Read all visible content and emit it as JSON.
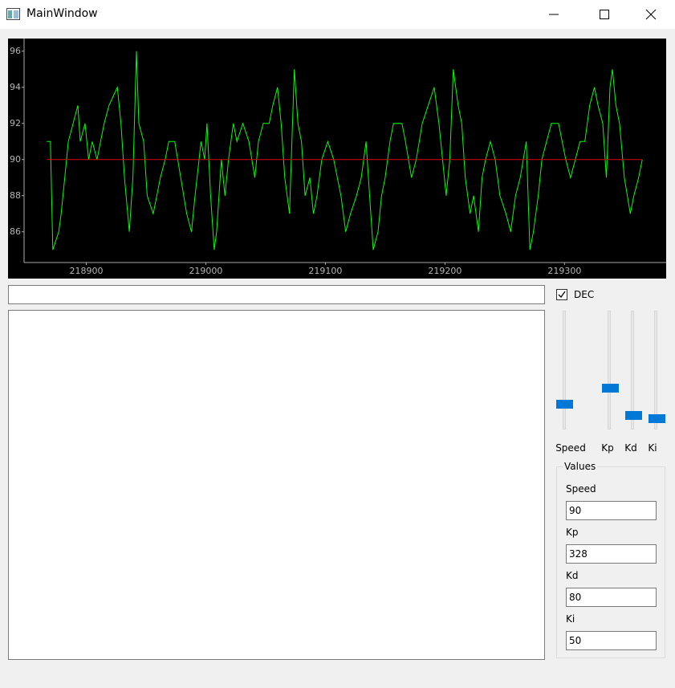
{
  "window": {
    "title": "MainWindow"
  },
  "chart_data": {
    "type": "line",
    "background": "#000000",
    "grid": false,
    "x": [
      218867,
      218870,
      218872,
      218877,
      218879,
      218882,
      218885,
      218889,
      218893,
      218895,
      218899,
      218902,
      218905,
      218909,
      218912,
      218915,
      218919,
      218926,
      218929,
      218932,
      218936,
      218939,
      218942,
      218944,
      218948,
      218951,
      218956,
      218959,
      218962,
      218966,
      218969,
      218974,
      218979,
      218984,
      218988,
      218991,
      218996,
      218999,
      219001,
      219004,
      219007,
      219009,
      219013,
      219016,
      219019,
      219023,
      219026,
      219031,
      219036,
      219041,
      219044,
      219048,
      219053,
      219056,
      219060,
      219063,
      219066,
      219070,
      219074,
      219077,
      219080,
      219083,
      219087,
      219090,
      219093,
      219097,
      219102,
      219107,
      219110,
      219113,
      219117,
      219121,
      219126,
      219130,
      219134,
      219137,
      219140,
      219144,
      219147,
      219150,
      219154,
      219157,
      219164,
      219167,
      219172,
      219176,
      219181,
      219186,
      219191,
      219195,
      219201,
      219204,
      219207,
      219211,
      219214,
      219217,
      219221,
      219224,
      219228,
      219231,
      219234,
      219238,
      219242,
      219246,
      219251,
      219255,
      219259,
      219263,
      219268,
      219271,
      219274,
      219278,
      219281,
      219285,
      219289,
      219295,
      219298,
      219301,
      219305,
      219309,
      219313,
      219317,
      219321,
      219325,
      219328,
      219332,
      219335,
      219338,
      219340,
      219343,
      219346,
      219350,
      219355,
      219358,
      219362,
      219365
    ],
    "series": [
      {
        "color": "#00ff00",
        "values": [
          91,
          91,
          85,
          86,
          87,
          89,
          91,
          92,
          93,
          91,
          92,
          90,
          91,
          90,
          91,
          92,
          93,
          94,
          92,
          89,
          86,
          89,
          96,
          92,
          91,
          88,
          87,
          88,
          89,
          90,
          91,
          91,
          89,
          87,
          86,
          88,
          91,
          90,
          92,
          88,
          85,
          86,
          90,
          88,
          90,
          92,
          91,
          92,
          91,
          89,
          91,
          92,
          92,
          93,
          94,
          92,
          89,
          87,
          95,
          92,
          91,
          88,
          89,
          87,
          88,
          90,
          91,
          90,
          89,
          88,
          86,
          87,
          88,
          89,
          91,
          88,
          85,
          86,
          88,
          89,
          91,
          92,
          92,
          91,
          89,
          90,
          92,
          93,
          94,
          92,
          88,
          90,
          95,
          93,
          92,
          89,
          87,
          88,
          86,
          89,
          90,
          91,
          90,
          88,
          87,
          86,
          88,
          89,
          91,
          85,
          86,
          88,
          90,
          91,
          92,
          92,
          91,
          90,
          89,
          90,
          91,
          91,
          93,
          94,
          93,
          92,
          89,
          94,
          95,
          93,
          92,
          89,
          87,
          88,
          89,
          90
        ]
      }
    ],
    "hlines": [
      {
        "value": 90,
        "color": "#dd0000"
      }
    ],
    "xlim": [
      218848,
      219385
    ],
    "ylim": [
      84.3,
      96.7
    ],
    "xticks": [
      218900,
      219000,
      219100,
      219200,
      219300
    ],
    "yticks": [
      86,
      88,
      90,
      92,
      94,
      96
    ]
  },
  "controls": {
    "dec_checkbox": {
      "label": "DEC",
      "checked": true
    },
    "sliders": [
      {
        "label": "Speed"
      },
      {
        "label": "Kp"
      },
      {
        "label": "Kd"
      },
      {
        "label": "Ki"
      }
    ],
    "values_group": {
      "title": "Values",
      "fields": [
        {
          "label": "Speed",
          "value": 90
        },
        {
          "label": "Kp",
          "value": 328
        },
        {
          "label": "Kd",
          "value": 80
        },
        {
          "label": "Ki",
          "value": 50
        }
      ]
    }
  }
}
